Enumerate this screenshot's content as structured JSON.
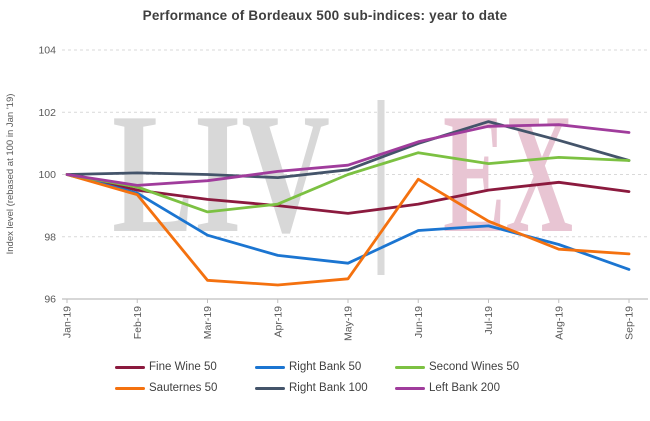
{
  "chart_data": {
    "type": "line",
    "title": "Performance of Bordeaux 500 sub-indices: year to date",
    "xlabel": "",
    "ylabel": "Index level (rebased at 100 in Jan '19)",
    "x": [
      "Jan-19",
      "Feb-19",
      "Mar-19",
      "Apr-19",
      "May-19",
      "Jun-19",
      "Jul-19",
      "Aug-19",
      "Sep-19"
    ],
    "ylim": [
      96,
      104
    ],
    "yticks": [
      96,
      98,
      100,
      102,
      104
    ],
    "grid": "horizontal-dashed",
    "legend_position": "bottom",
    "series": [
      {
        "name": "Fine Wine 50",
        "color": "#8B1A3E",
        "z": 1,
        "values": [
          100,
          99.5,
          99.2,
          99.0,
          98.75,
          99.05,
          99.5,
          99.75,
          99.45
        ]
      },
      {
        "name": "Right Bank 50",
        "color": "#1B75D1",
        "z": 2,
        "values": [
          100,
          99.4,
          98.05,
          97.4,
          97.15,
          98.2,
          98.35,
          97.75,
          96.95
        ]
      },
      {
        "name": "Second Wines 50",
        "color": "#7CC142",
        "z": 5,
        "values": [
          100,
          99.6,
          98.8,
          99.05,
          100.0,
          100.7,
          100.35,
          100.55,
          100.45
        ]
      },
      {
        "name": "Sauternes 50",
        "color": "#F4710F",
        "z": 4,
        "values": [
          100,
          99.35,
          96.6,
          96.45,
          96.65,
          99.85,
          98.5,
          97.6,
          97.45
        ]
      },
      {
        "name": "Right Bank 100",
        "color": "#44546A",
        "z": 3,
        "values": [
          100,
          100.05,
          100.0,
          99.9,
          100.15,
          101.0,
          101.7,
          101.1,
          100.45
        ]
      },
      {
        "name": "Left Bank 200",
        "color": "#A03C9C",
        "z": 6,
        "values": [
          100,
          99.65,
          99.8,
          100.1,
          100.3,
          101.05,
          101.55,
          101.6,
          101.35
        ]
      }
    ],
    "watermark": {
      "left_text": "LIV",
      "right_text": "EX",
      "left_color": "#D8D8D8",
      "bar_color": "#DADADA",
      "right_color": "#E8C5D3"
    },
    "colors": {
      "grid": "#D9D9D9",
      "axis": "#BFBFBF",
      "title_text": "#3F3F3F",
      "tick_text": "#595959",
      "legend_text": "#404040"
    }
  }
}
